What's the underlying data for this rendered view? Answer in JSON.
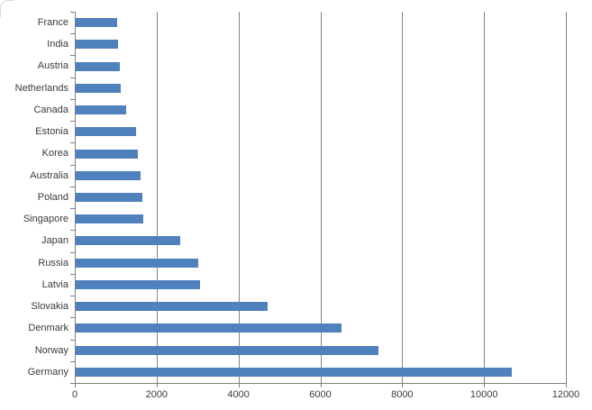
{
  "chart_data": {
    "type": "bar",
    "orientation": "horizontal",
    "title": "",
    "xlabel": "",
    "ylabel": "",
    "legend": null,
    "grid": true,
    "categories": [
      "France",
      "India",
      "Austria",
      "Netherlands",
      "Canada",
      "Estonia",
      "Korea",
      "Australia",
      "Poland",
      "Singapore",
      "Japan",
      "Russia",
      "Latvia",
      "Slovakia",
      "Denmark",
      "Norway",
      "Germany"
    ],
    "values": [
      1010,
      1045,
      1080,
      1105,
      1225,
      1470,
      1515,
      1580,
      1620,
      1655,
      2555,
      3000,
      3030,
      4700,
      6500,
      7400,
      10650
    ],
    "xlim": [
      0,
      12000
    ],
    "x_ticks": [
      0,
      2000,
      4000,
      6000,
      8000,
      10000,
      12000
    ],
    "x_tick_labels": [
      "0",
      "2000",
      "4000",
      "6000",
      "8000",
      "10000",
      "12000"
    ],
    "colors": {
      "bar": "#4F81BD",
      "gridline": "#848484",
      "axis": "#808080",
      "tick_label": "#3A3A3A",
      "chart_border": "#D9D9D9"
    }
  }
}
